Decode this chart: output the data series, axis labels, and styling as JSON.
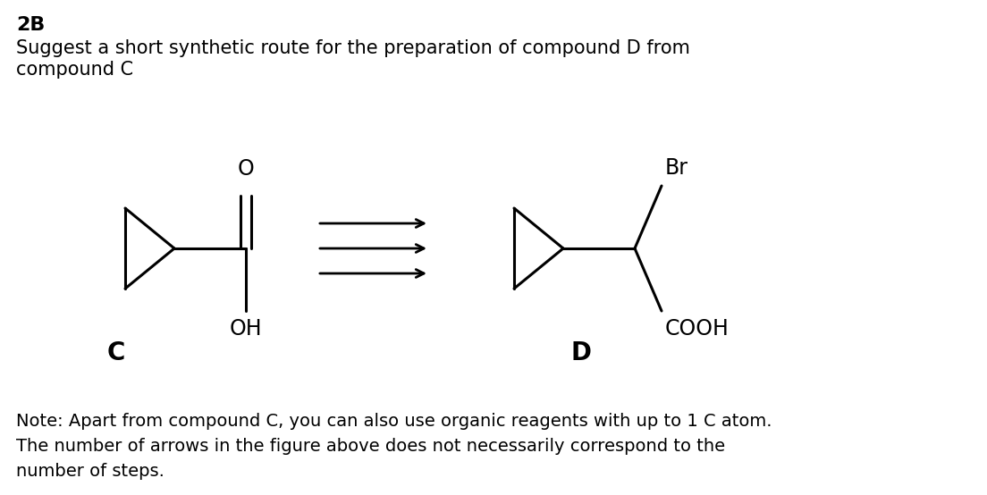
{
  "title_bold": "2B",
  "subtitle_line1": "Suggest a short synthetic route for the preparation of compound D from",
  "subtitle_line2": "compound C",
  "note_line1": "Note: Apart from compound C, you can also use organic reagents with up to 1 C atom.",
  "note_line2": "The number of arrows in the figure above does not necessarily correspond to the",
  "note_line3": "number of steps.",
  "label_C": "C",
  "label_D": "D",
  "label_OH": "OH",
  "label_O": "O",
  "label_Br": "Br",
  "label_COOH": "COOH",
  "bg_color": "#ffffff",
  "text_color": "#000000",
  "font_size_title": 16,
  "font_size_body": 15,
  "font_size_note": 14,
  "font_size_atom": 15
}
